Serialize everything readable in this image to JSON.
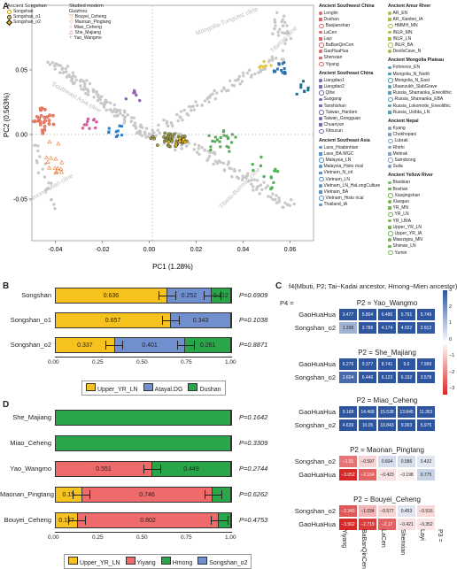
{
  "panelA": {
    "label": "A",
    "xlabel": "PC1 (1.28%)",
    "ylabel": "PC2 (0.563%)",
    "xticks": [
      "-0.04",
      "-0.02",
      "0.00",
      "0.02",
      "0.04",
      "0.06"
    ],
    "yticks": [
      "0.05",
      "0.00",
      "-0.05"
    ],
    "region_labels": [
      "Southeast Asia cline",
      "Mongolia-Tungusic cline",
      "Tibetan cline",
      "Hmong-Mien cline",
      "Tibeto-Burman cline"
    ],
    "legend_left": {
      "title1": "Ancient Songshan",
      "items1": [
        "Songshan",
        "Songshan_o1",
        "Songshan_o2"
      ],
      "title2": "Studied modern Guizhou",
      "items2": [
        "Bouyei_Ceheng",
        "Maonan_Pingtang",
        "Miao_Ceheng",
        "She_Majiang",
        "Yao_Wangmo"
      ]
    },
    "legend_right": [
      {
        "title": "Ancient Southwest China",
        "items": [
          "Longlin",
          "Dushan",
          "Baojianshan",
          "LaCen",
          "Layi",
          "BaBanQinCen",
          "GaoHuaHua",
          "Shenxian",
          "Yiyang"
        ]
      },
      {
        "title": "Ancient Southeast China",
        "items": [
          "Liangdao1",
          "Liangdao2",
          "Qihe",
          "Suogang",
          "Tanshishan",
          "Taiwan_Hanben",
          "Taiwan_Gongguan",
          "Chuanyun",
          "Xitoucun"
        ]
      },
      {
        "title": "Ancient Southeast Asia",
        "items": [
          "Laos_Hoabinhian",
          "Laos_BA.WGC",
          "Malaysia_LN",
          "Malaysia_Histo rical",
          "Vietnam_N_oil",
          "Vietnam_LN",
          "Vietnam_LN_HaLongCulture",
          "Vietnam_BA",
          "Vietnam_Histo rical",
          "Thailand_IA"
        ]
      },
      {
        "title": "Ancient Amur River",
        "items": [
          "AR_EN",
          "AR_Xianbei_IA",
          "HMMH_MN",
          "INLR_MN",
          "INLR_LN",
          "INLR_BA",
          "DevilsCave_N"
        ]
      },
      {
        "title": "Ancient Mongolia Plateau",
        "items": [
          "Fofonovo_EN",
          "Mongolia_N_North",
          "Mongolia_N_East",
          "Ulaanzukh_SlabGrave",
          "Russia_Shamanka_Eneolithic",
          "Russia_Shamanka_EBA",
          "Russia_Lokomotiv_Eneolithic",
          "Russia_UstIda_LN"
        ]
      },
      {
        "title": "Ancient Nepal",
        "items": [
          "Kyang",
          "Chokhopani",
          "Lubrak",
          "Rhirhi",
          "Mebrak",
          "Samdzong",
          "Suila"
        ]
      },
      {
        "title": "Ancient Yellow River",
        "items": [
          "Bianbian",
          "Boshan",
          "Xiaojingshan",
          "Xiaogao",
          "YR_MN",
          "YR_LN",
          "YR_LBIA",
          "Upper_YR_LN",
          "Upper_YR_IA",
          "Miaozigou_MN",
          "Shimao_LN",
          "Yumin"
        ]
      }
    ]
  },
  "panelB": {
    "label": "B",
    "xticks": [
      "0.00",
      "0.25",
      "0.50",
      "0.75",
      "1.00"
    ],
    "legend": [
      "Upper_YR_LN",
      "Atayal.DG",
      "Dushan"
    ],
    "colors": [
      "#f6c21d",
      "#6f8fcf",
      "#2aa64a"
    ],
    "rows": [
      {
        "name": "Songshan",
        "values": [
          0.636,
          0.252,
          0.112
        ],
        "labels": [
          "0.636",
          "0.252",
          "0.112"
        ],
        "p": "P=0.6909"
      },
      {
        "name": "Songshan_o1",
        "values": [
          0.657,
          0.343,
          0.0
        ],
        "labels": [
          "0.657",
          "0.343",
          ""
        ],
        "p": "P=0.1038"
      },
      {
        "name": "Songshan_o2",
        "values": [
          0.337,
          0.401,
          0.261
        ],
        "labels": [
          "0.337",
          "0.401",
          "0.261"
        ],
        "p": "P=0.8871"
      }
    ]
  },
  "panelC": {
    "label": "C",
    "title": "f4(Mbuti, P2; Tai−Kadai ancestor, Hmong−Mien ancestor)",
    "p4_label": "P4 =",
    "p3_label": "P3 =",
    "columns": [
      "Yiyang",
      "BaBanQinCen",
      "LaCen",
      "Shenxian",
      "Layi"
    ],
    "scale": [
      "3",
      "2",
      "1",
      "0",
      "−1",
      "−2",
      "−3"
    ],
    "blocks": [
      {
        "title": "P2 = Yao_Wangmo",
        "rows": [
          {
            "name": "GaoHuaHua",
            "values": [
              3.477,
              5.804,
              6.485,
              5.791,
              5.749
            ],
            "labels": [
              "3.477",
              "5.804",
              "6.485",
              "5.791",
              "5.749"
            ]
          },
          {
            "name": "Songshan_o2",
            "values": [
              1.336,
              3.786,
              4.174,
              4.022,
              2.912
            ],
            "labels": [
              "1.336",
              "3.786",
              "4.174",
              "4.022",
              "2.912"
            ]
          }
        ]
      },
      {
        "title": "P2 = She_Majiang",
        "rows": [
          {
            "name": "GaoHuaHua",
            "values": [
              6.276,
              9.377,
              8.741,
              9.6,
              7.999
            ],
            "labels": [
              "6.276",
              "9.377",
              "8.741",
              "9.6",
              "7.999"
            ]
          },
          {
            "name": "Songshan_o2",
            "values": [
              2.604,
              6.446,
              6.123,
              6.192,
              3.578
            ],
            "labels": [
              "2.604",
              "6.446",
              "6.123",
              "6.192",
              "3.578"
            ]
          }
        ]
      },
      {
        "title": "P2 = Miao_Ceheng",
        "rows": [
          {
            "name": "GaoHuaHua",
            "values": [
              9.168,
              14.468,
              15.538,
              13.845,
              11.363
            ],
            "labels": [
              "9.168",
              "14.468",
              "15.538",
              "13.845",
              "11.363"
            ]
          },
          {
            "name": "Songshan_o2",
            "values": [
              4.639,
              10.05,
              10.843,
              9.003,
              5.975
            ],
            "labels": [
              "4.639",
              "10.05",
              "10.843",
              "9.003",
              "5.975"
            ]
          }
        ]
      },
      {
        "title": "P2 = Maonan_Pingtang",
        "rows": [
          {
            "name": "Songshan_o2",
            "values": [
              -1.91,
              -0.597,
              0.604,
              0.586,
              0.432
            ],
            "labels": [
              "−1.91",
              "−0.597",
              "0.604",
              "0.586",
              "0.432"
            ]
          },
          {
            "name": "GaoHuaHua",
            "values": [
              -3.052,
              -2.164,
              -0.423,
              -0.198,
              0.775
            ],
            "labels": [
              "−3.052",
              "−2.164",
              "−0.423",
              "−0.198",
              "0.775"
            ]
          }
        ]
      },
      {
        "title": "P2 = Bouyei_Ceheng",
        "rows": [
          {
            "name": "Songshan_o2",
            "values": [
              -2.343,
              -1.034,
              -0.577,
              0.453,
              -0.516
            ],
            "labels": [
              "−2.343",
              "−1.034",
              "−0.577",
              "0.453",
              "−0.516"
            ]
          },
          {
            "name": "GaoHuaHua",
            "values": [
              -3.562,
              -2.719,
              -2.17,
              -0.421,
              -0.352
            ],
            "labels": [
              "−3.562",
              "−2.719",
              "−2.17",
              "−0.421",
              "−0.352"
            ]
          }
        ]
      }
    ]
  },
  "panelD": {
    "label": "D",
    "xticks": [
      "0.00",
      "0.25",
      "0.50",
      "0.75",
      "1.00"
    ],
    "legend": [
      "Upper_YR_LN",
      "Yiyang",
      "Hmong",
      "Songshan_o2"
    ],
    "colors": [
      "#f6c21d",
      "#ef6a6a",
      "#2aa64a",
      "#6f8fcf"
    ],
    "rows": [
      {
        "name": "She_Majiang",
        "values": [
          0,
          0,
          1.0,
          0
        ],
        "labels": [
          "",
          "",
          "",
          ""
        ],
        "p": "P=0.1642"
      },
      {
        "name": "Miao_Ceheng",
        "values": [
          0,
          0,
          1.0,
          0
        ],
        "labels": [
          "",
          "",
          "",
          ""
        ],
        "p": "P=0.3309"
      },
      {
        "name": "Yao_Wangmo",
        "values": [
          0,
          0.551,
          0.449,
          0
        ],
        "labels": [
          "",
          "0.551",
          "0.449",
          ""
        ],
        "p": "P=0.2744"
      },
      {
        "name": "Maonan_Pingtang",
        "values": [
          0.15,
          0.746,
          0.104,
          0
        ],
        "labels": [
          "0.15",
          "0.746",
          "",
          ""
        ],
        "p": "P=0.6262"
      },
      {
        "name": "Bouyei_Ceheng",
        "values": [
          0.127,
          0.802,
          0.071,
          0
        ],
        "labels": [
          "0.127",
          "0.802",
          "",
          ""
        ],
        "p": "P=0.4753"
      }
    ]
  }
}
